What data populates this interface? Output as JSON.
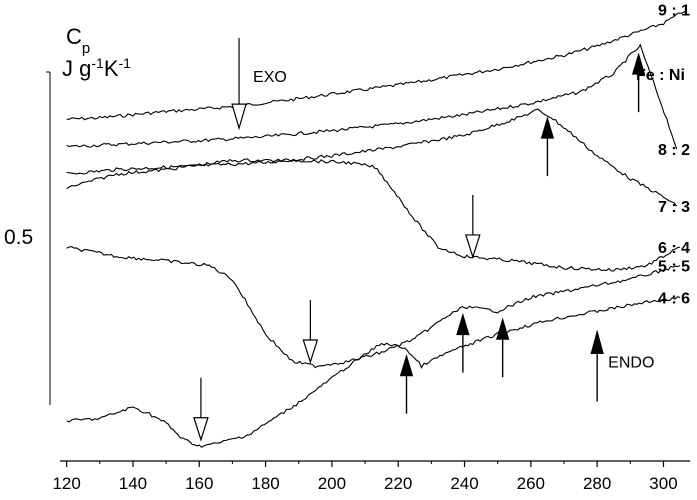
{
  "chart_data": {
    "type": "line",
    "y_label_symbol": "Cp",
    "y_label_unit": "J g-1K-1",
    "y_scale_bar_label": "0.5",
    "x_ticks": [
      120,
      140,
      160,
      180,
      200,
      220,
      240,
      260,
      280,
      300
    ],
    "xlim": [
      118,
      308
    ],
    "y_offset_lim": [
      0,
      100
    ],
    "annotations": [
      {
        "text": "EXO",
        "x": 172,
        "y": 84,
        "arrow": "open-down"
      },
      {
        "text": "ENDO",
        "x": 280,
        "y": 22,
        "arrow": "filled-up"
      }
    ],
    "legend_header": "Fe : Ni",
    "series": [
      {
        "name": "9 : 1",
        "x": [
          120,
          130,
          140,
          150,
          160,
          170,
          180,
          190,
          200,
          210,
          220,
          230,
          240,
          250,
          260,
          270,
          280,
          290,
          300,
          307
        ],
        "y": [
          75,
          75.3,
          76,
          76.7,
          77.2,
          77.8,
          78.6,
          79.5,
          80.5,
          81.5,
          82.5,
          83.6,
          84.8,
          86,
          87.5,
          89,
          91,
          93.5,
          96,
          99
        ]
      },
      {
        "name": "8 : 2",
        "x": [
          120,
          135,
          150,
          165,
          180,
          200,
          220,
          240,
          260,
          275,
          285,
          290,
          293,
          297,
          301,
          304
        ],
        "y": [
          69,
          69.5,
          70,
          70.5,
          71.2,
          72.5,
          74,
          76,
          78.5,
          81,
          85,
          89,
          91,
          83,
          75,
          68.5
        ]
      },
      {
        "name": "7 : 3",
        "x": [
          120,
          135,
          150,
          165,
          180,
          200,
          220,
          240,
          255,
          262,
          266,
          272,
          280,
          290,
          300,
          304
        ],
        "y": [
          63,
          64,
          64.5,
          65,
          65.5,
          67,
          69,
          71.5,
          75,
          77,
          75.5,
          72,
          67,
          62,
          58,
          56
        ]
      },
      {
        "name": "6 : 4",
        "x": [
          120,
          135,
          150,
          170,
          190,
          205,
          213,
          218,
          225,
          232,
          240,
          255,
          270,
          285,
          295,
          300,
          305
        ],
        "y": [
          60,
          63,
          64,
          66,
          66,
          65.5,
          64.5,
          60,
          53,
          47,
          45,
          44,
          42.5,
          42,
          43,
          45,
          47
        ]
      },
      {
        "name": "5 : 5",
        "x": [
          120,
          135,
          150,
          163,
          170,
          180,
          188,
          195,
          205,
          215,
          225,
          235,
          240,
          250,
          260,
          275,
          290,
          300,
          305
        ],
        "y": [
          47,
          45,
          44,
          43,
          40,
          28,
          22,
          21,
          22,
          24,
          27,
          32,
          34,
          33,
          36,
          38,
          40,
          42,
          43
        ]
      },
      {
        "name": "4 : 6",
        "x": [
          120,
          130,
          140,
          145,
          150,
          155,
          160,
          165,
          175,
          190,
          205,
          215,
          222,
          227,
          235,
          250,
          265,
          280,
          295,
          305
        ],
        "y": [
          9,
          9.5,
          12,
          10.5,
          8.5,
          5,
          3.5,
          4,
          6,
          13,
          21,
          26,
          25,
          21,
          24,
          28,
          31,
          33,
          35,
          36
        ]
      }
    ],
    "markers": [
      {
        "type": "open-down",
        "x": 160.5,
        "y": 4
      },
      {
        "type": "open-down",
        "x": 193.5,
        "y": 21
      },
      {
        "type": "open-down",
        "x": 242.5,
        "y": 44
      },
      {
        "type": "filled-up",
        "x": 222.5,
        "y": 25
      },
      {
        "type": "filled-up",
        "x": 239.5,
        "y": 34
      },
      {
        "type": "filled-up",
        "x": 251.5,
        "y": 33
      },
      {
        "type": "filled-up",
        "x": 265,
        "y": 77
      },
      {
        "type": "filled-up",
        "x": 292.5,
        "y": 91
      }
    ]
  }
}
